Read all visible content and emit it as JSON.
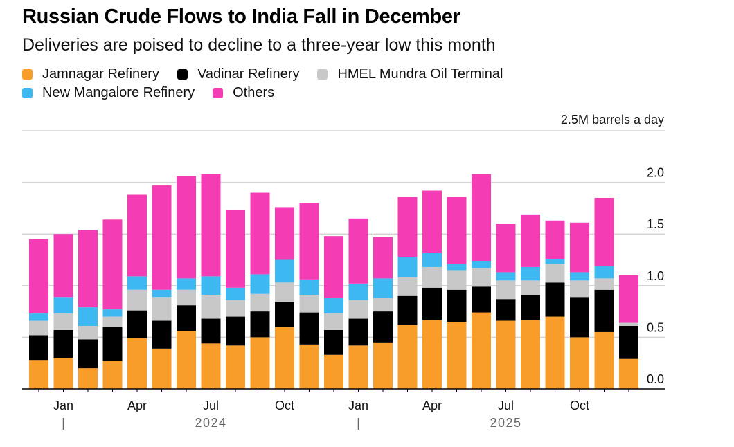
{
  "title": "Russian Crude Flows to India Fall in December",
  "subtitle": "Deliveries are poised to decline to a three-year low this month",
  "legend": [
    {
      "label": "Jamnagar Refinery",
      "color": "#f99d2a"
    },
    {
      "label": "Vadinar Refinery",
      "color": "#000000"
    },
    {
      "label": "HMEL Mundra Oil Terminal",
      "color": "#c8c8c8"
    },
    {
      "label": "New Mangalore Refinery",
      "color": "#3db8f0"
    },
    {
      "label": "Others",
      "color": "#f43cb4"
    }
  ],
  "chart_data": {
    "type": "bar",
    "stacked": true,
    "title": "Russian Crude Flows to India Fall in December",
    "ylabel": "2.5M barrels a day",
    "ylim": [
      0,
      2.5
    ],
    "yticks": [
      "0.0",
      "0.5",
      "1.0",
      "1.5",
      "2.0"
    ],
    "x_tick_labels": [
      "Jan",
      "Apr",
      "Jul",
      "Oct",
      "Jan",
      "Apr",
      "Jul",
      "Oct"
    ],
    "x_tick_positions": [
      1,
      4,
      7,
      10,
      13,
      16,
      19,
      22
    ],
    "years": [
      {
        "label": "2024",
        "position": 7
      },
      {
        "label": "2025",
        "position": 19
      }
    ],
    "categories": [
      "Dec 2023",
      "Jan 2024",
      "Feb 2024",
      "Mar 2024",
      "Apr 2024",
      "May 2024",
      "Jun 2024",
      "Jul 2024",
      "Aug 2024",
      "Sep 2024",
      "Oct 2024",
      "Nov 2024",
      "Dec 2024",
      "Jan 2025",
      "Feb 2025",
      "Mar 2025",
      "Apr 2025",
      "May 2025",
      "Jun 2025",
      "Jul 2025",
      "Aug 2025",
      "Sep 2025",
      "Oct 2025",
      "Nov 2025",
      "Dec 2025"
    ],
    "series": [
      {
        "name": "Jamnagar Refinery",
        "color": "#f99d2a",
        "values": [
          0.28,
          0.3,
          0.2,
          0.27,
          0.49,
          0.39,
          0.56,
          0.44,
          0.42,
          0.5,
          0.6,
          0.43,
          0.33,
          0.42,
          0.45,
          0.62,
          0.67,
          0.65,
          0.74,
          0.66,
          0.67,
          0.7,
          0.5,
          0.55,
          0.29
        ]
      },
      {
        "name": "Vadinar Refinery",
        "color": "#000000",
        "values": [
          0.24,
          0.27,
          0.28,
          0.33,
          0.27,
          0.27,
          0.25,
          0.24,
          0.28,
          0.25,
          0.24,
          0.31,
          0.24,
          0.26,
          0.3,
          0.28,
          0.31,
          0.31,
          0.25,
          0.21,
          0.24,
          0.33,
          0.39,
          0.41,
          0.32
        ]
      },
      {
        "name": "HMEL Mundra Oil Terminal",
        "color": "#c8c8c8",
        "values": [
          0.14,
          0.16,
          0.13,
          0.1,
          0.2,
          0.23,
          0.15,
          0.23,
          0.16,
          0.17,
          0.19,
          0.17,
          0.16,
          0.18,
          0.13,
          0.18,
          0.2,
          0.19,
          0.18,
          0.18,
          0.14,
          0.18,
          0.16,
          0.11,
          0.03
        ]
      },
      {
        "name": "New Mangalore Refinery",
        "color": "#3db8f0",
        "values": [
          0.07,
          0.16,
          0.18,
          0.07,
          0.13,
          0.07,
          0.11,
          0.18,
          0.12,
          0.19,
          0.22,
          0.15,
          0.15,
          0.16,
          0.19,
          0.2,
          0.14,
          0.06,
          0.07,
          0.08,
          0.13,
          0.05,
          0.08,
          0.12,
          0.0
        ]
      },
      {
        "name": "Others",
        "color": "#f43cb4",
        "values": [
          0.72,
          0.61,
          0.75,
          0.87,
          0.79,
          1.01,
          0.99,
          0.99,
          0.75,
          0.79,
          0.51,
          0.74,
          0.6,
          0.63,
          0.4,
          0.58,
          0.6,
          0.65,
          0.84,
          0.47,
          0.51,
          0.37,
          0.48,
          0.66,
          0.46
        ]
      }
    ]
  }
}
